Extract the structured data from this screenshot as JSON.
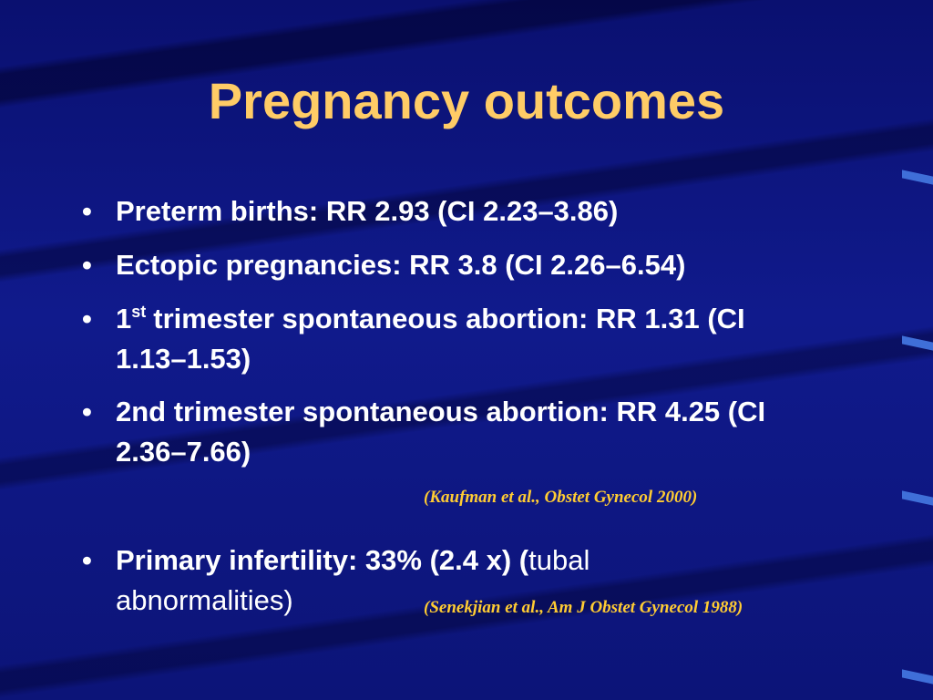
{
  "title": "Pregnancy outcomes",
  "bullets": [
    [
      "Preterm births: RR 2.93 (CI 2.23–3.86)"
    ],
    [
      "Ectopic pregnancies: RR 3.8 (CI 2.26–6.54)"
    ],
    [
      "1",
      "st",
      "trimester spontaneous abortion: RR 1.31 (CI 1.13–1.53)"
    ],
    [
      "2nd trimester spontaneous abortion: RR 4.25 (CI 2.36–7.66)"
    ],
    [
      "Primary infertility: 33% (2.4 x) (",
      "tubal abnormalities)"
    ]
  ],
  "citations": [
    "(Kaufman et al., Obstet Gynecol 2000)",
    "(Senekjian et al., Am J Obstet Gynecol 1988)"
  ]
}
